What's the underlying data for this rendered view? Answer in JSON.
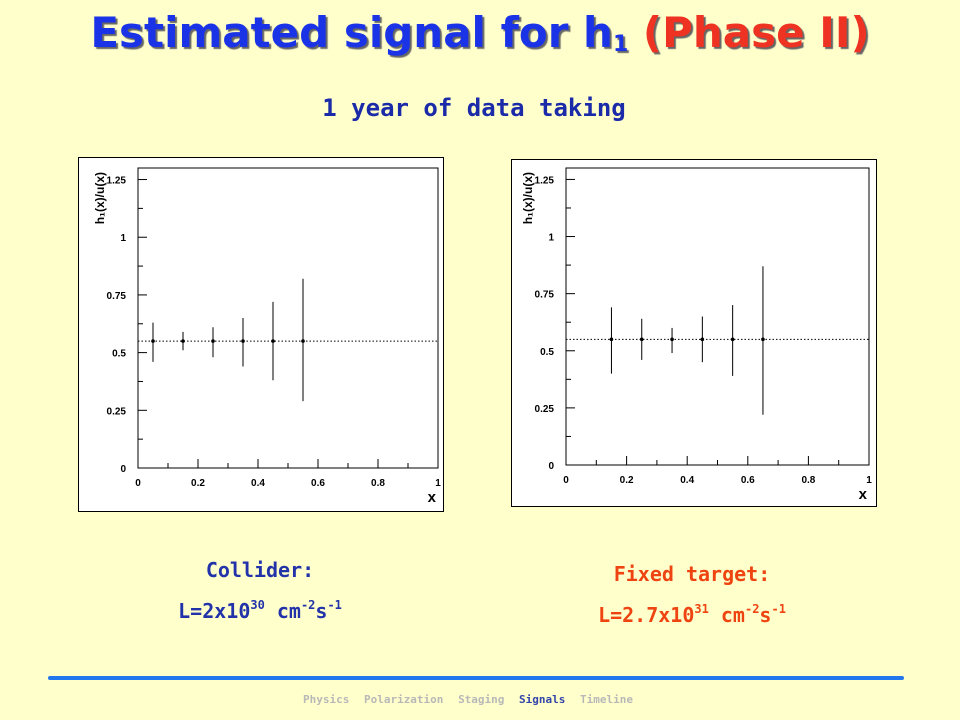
{
  "header": {
    "title_main": "Estimated signal for h",
    "title_sub": "1",
    "title_phase": "(Phase II)",
    "subtitle": "1 year of data taking"
  },
  "chart_data": [
    {
      "type": "scatter",
      "xlabel": "x",
      "ylabel": "h₁(x)/u(x)",
      "xlim": [
        0,
        1
      ],
      "ylim": [
        0,
        1.3
      ],
      "x_ticks": [
        "0",
        "0.2",
        "0.4",
        "0.6",
        "0.8",
        "1"
      ],
      "y_ticks": [
        "0",
        "0.25",
        "0.5",
        "0.75",
        "1",
        "1.25"
      ],
      "reference_line": 0.55,
      "grid": false,
      "points": [
        {
          "x": 0.05,
          "y": 0.55,
          "err_low": 0.46,
          "err_high": 0.63
        },
        {
          "x": 0.15,
          "y": 0.55,
          "err_low": 0.51,
          "err_high": 0.59
        },
        {
          "x": 0.25,
          "y": 0.55,
          "err_low": 0.48,
          "err_high": 0.61
        },
        {
          "x": 0.35,
          "y": 0.55,
          "err_low": 0.44,
          "err_high": 0.65
        },
        {
          "x": 0.45,
          "y": 0.55,
          "err_low": 0.38,
          "err_high": 0.72
        },
        {
          "x": 0.55,
          "y": 0.55,
          "err_low": 0.29,
          "err_high": 0.82
        }
      ],
      "caption_title": "Collider:",
      "caption_lumi": {
        "pre": "L=2x10",
        "exp1": "30",
        "mid": " cm",
        "exp2": "-2",
        "s": "s",
        "exp3": "-1"
      }
    },
    {
      "type": "scatter",
      "xlabel": "x",
      "ylabel": "h₁(x)/u(x)",
      "xlim": [
        0,
        1
      ],
      "ylim": [
        0,
        1.3
      ],
      "x_ticks": [
        "0",
        "0.2",
        "0.4",
        "0.6",
        "0.8",
        "1"
      ],
      "y_ticks": [
        "0",
        "0.25",
        "0.5",
        "0.75",
        "1",
        "1.25"
      ],
      "reference_line": 0.55,
      "grid": false,
      "points": [
        {
          "x": 0.15,
          "y": 0.55,
          "err_low": 0.4,
          "err_high": 0.69
        },
        {
          "x": 0.25,
          "y": 0.55,
          "err_low": 0.46,
          "err_high": 0.64
        },
        {
          "x": 0.35,
          "y": 0.55,
          "err_low": 0.49,
          "err_high": 0.6
        },
        {
          "x": 0.45,
          "y": 0.55,
          "err_low": 0.45,
          "err_high": 0.65
        },
        {
          "x": 0.55,
          "y": 0.55,
          "err_low": 0.39,
          "err_high": 0.7
        },
        {
          "x": 0.65,
          "y": 0.55,
          "err_low": 0.22,
          "err_high": 0.87
        }
      ],
      "caption_title": "Fixed target:",
      "caption_lumi": {
        "pre": "L=2.7x10",
        "exp1": "31",
        "mid": " cm",
        "exp2": "-2",
        "s": "s",
        "exp3": "-1"
      }
    }
  ],
  "nav": {
    "items": [
      "Physics",
      "Polarization",
      "Staging",
      "Signals",
      "Timeline"
    ],
    "active": "Signals"
  }
}
